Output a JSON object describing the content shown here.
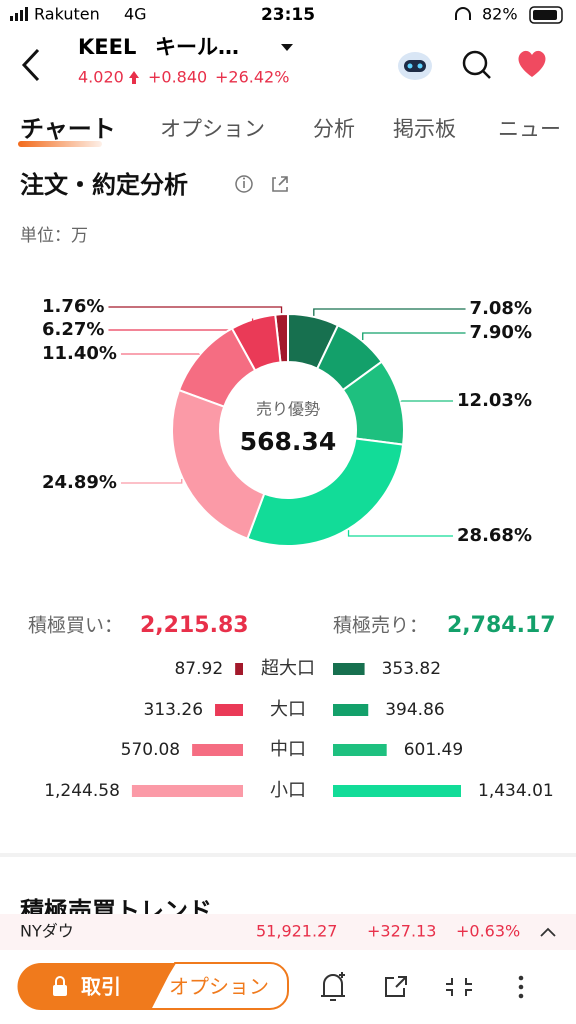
{
  "status_bar": {
    "carrier": "Rakuten",
    "network": "4G",
    "time": "23:15",
    "battery": "82%"
  },
  "header": {
    "ticker": "KEEL",
    "name": "キール…",
    "price": "4.020",
    "change": "+0.840",
    "change_pct": "+26.42%"
  },
  "tabs": [
    "チャート",
    "オプション",
    "分析",
    "掲示板",
    "ニュー"
  ],
  "section": {
    "title": "注文・約定分析",
    "unit": "単位：万"
  },
  "donut": {
    "type": "pie",
    "center_label": "売り優勢",
    "center_value": "568.34",
    "buy": {
      "values": [
        1.76,
        6.27,
        11.4,
        24.89
      ],
      "value_labels": [
        "1.76%",
        "6.27%",
        "11.40%",
        "24.89%"
      ],
      "colors": [
        "#a3192b",
        "#ea3a57",
        "#f56d82",
        "#fb9aa7"
      ]
    },
    "sell": {
      "values": [
        7.08,
        7.9,
        12.03,
        28.68
      ],
      "value_labels": [
        "7.08%",
        "7.90%",
        "12.03%",
        "28.68%"
      ],
      "colors": [
        "#17704f",
        "#13a06a",
        "#1ec07f",
        "#12dc98"
      ]
    }
  },
  "totals": {
    "buy_label": "積極買い：",
    "buy": "2,215.83",
    "sell_label": "積極売り：",
    "sell": "2,784.17"
  },
  "flows": {
    "categories": [
      "超大口",
      "大口",
      "中口",
      "小口"
    ],
    "buy": {
      "values": [
        87.92,
        313.26,
        570.08,
        1244.58
      ],
      "value_labels": [
        "87.92",
        "313.26",
        "570.08",
        "1,244.58"
      ]
    },
    "sell": {
      "values": [
        353.82,
        394.86,
        601.49,
        1434.01
      ],
      "value_labels": [
        "353.82",
        "394.86",
        "601.49",
        "1,434.01"
      ]
    }
  },
  "section2": {
    "title": "積極売買トレンド"
  },
  "ticker_bar": {
    "name": "NYダウ",
    "value": "51,921.27",
    "change": "+327.13",
    "change_pct": "+0.63%"
  },
  "bottom_bar": {
    "trade": "取引",
    "options": "オプション"
  }
}
